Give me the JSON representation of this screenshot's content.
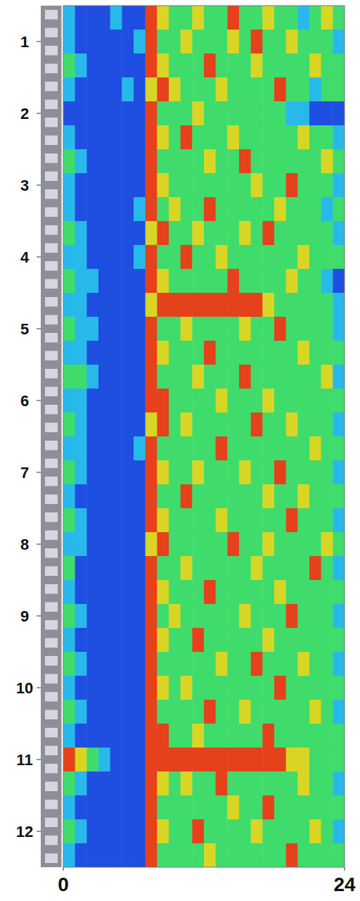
{
  "chart_data": {
    "type": "heatmap",
    "xlim": [
      0,
      24
    ],
    "xticks": [
      0,
      24
    ],
    "ylim": [
      0.5,
      12.5
    ],
    "yticks": [
      1,
      2,
      3,
      4,
      5,
      6,
      7,
      8,
      9,
      10,
      11,
      12
    ],
    "zlim": [
      0,
      4
    ],
    "colors": [
      "#1f4fe0",
      "#27b9ea",
      "#3fdc6c",
      "#d9d524",
      "#e5421c"
    ],
    "cells": [
      [
        1,
        0,
        0,
        0,
        1,
        0,
        0,
        4,
        3,
        2,
        2,
        3,
        2,
        2,
        4,
        2,
        2,
        3,
        2,
        2,
        1,
        2,
        3,
        2
      ],
      [
        1,
        0,
        0,
        0,
        0,
        0,
        1,
        4,
        2,
        2,
        3,
        2,
        2,
        2,
        3,
        2,
        4,
        2,
        2,
        3,
        2,
        2,
        2,
        1
      ],
      [
        2,
        1,
        0,
        0,
        0,
        0,
        0,
        4,
        3,
        2,
        2,
        2,
        4,
        2,
        2,
        2,
        3,
        2,
        2,
        2,
        2,
        3,
        2,
        2
      ],
      [
        1,
        0,
        0,
        0,
        0,
        1,
        0,
        3,
        4,
        3,
        2,
        2,
        2,
        3,
        2,
        2,
        2,
        2,
        4,
        2,
        2,
        1,
        2,
        2
      ],
      [
        0,
        0,
        0,
        0,
        0,
        0,
        0,
        4,
        2,
        2,
        2,
        3,
        2,
        2,
        2,
        2,
        2,
        2,
        2,
        1,
        1,
        0,
        0,
        0
      ],
      [
        1,
        0,
        0,
        0,
        0,
        0,
        0,
        4,
        3,
        2,
        4,
        2,
        2,
        2,
        3,
        2,
        2,
        2,
        2,
        2,
        3,
        2,
        2,
        1
      ],
      [
        2,
        1,
        0,
        0,
        0,
        0,
        0,
        4,
        2,
        2,
        2,
        2,
        3,
        2,
        2,
        4,
        2,
        2,
        2,
        2,
        2,
        2,
        3,
        2
      ],
      [
        1,
        0,
        0,
        0,
        0,
        0,
        0,
        4,
        3,
        2,
        2,
        2,
        2,
        2,
        2,
        2,
        3,
        2,
        2,
        4,
        2,
        2,
        2,
        1
      ],
      [
        1,
        0,
        0,
        0,
        0,
        0,
        1,
        4,
        2,
        3,
        2,
        2,
        4,
        2,
        2,
        2,
        2,
        2,
        3,
        2,
        2,
        2,
        1,
        2
      ],
      [
        2,
        1,
        0,
        0,
        0,
        0,
        0,
        3,
        4,
        2,
        2,
        3,
        2,
        2,
        2,
        3,
        2,
        4,
        2,
        2,
        2,
        2,
        2,
        1
      ],
      [
        1,
        1,
        0,
        0,
        0,
        0,
        1,
        4,
        2,
        2,
        4,
        2,
        2,
        3,
        2,
        2,
        2,
        2,
        2,
        2,
        3,
        2,
        2,
        2
      ],
      [
        2,
        1,
        1,
        0,
        0,
        0,
        0,
        4,
        3,
        2,
        2,
        2,
        2,
        2,
        4,
        2,
        2,
        2,
        2,
        3,
        2,
        2,
        1,
        0
      ],
      [
        1,
        1,
        0,
        0,
        0,
        0,
        0,
        3,
        4,
        4,
        4,
        4,
        4,
        4,
        4,
        4,
        4,
        3,
        2,
        2,
        2,
        2,
        2,
        1
      ],
      [
        2,
        1,
        1,
        0,
        0,
        0,
        0,
        4,
        2,
        2,
        3,
        2,
        2,
        2,
        2,
        3,
        2,
        2,
        4,
        2,
        2,
        2,
        2,
        1
      ],
      [
        1,
        1,
        0,
        0,
        0,
        0,
        0,
        4,
        3,
        2,
        2,
        2,
        4,
        2,
        2,
        2,
        2,
        2,
        2,
        2,
        3,
        2,
        2,
        2
      ],
      [
        2,
        2,
        1,
        0,
        0,
        0,
        0,
        4,
        2,
        2,
        2,
        3,
        2,
        2,
        2,
        4,
        2,
        2,
        2,
        2,
        2,
        2,
        3,
        1
      ],
      [
        1,
        1,
        0,
        0,
        0,
        0,
        0,
        4,
        4,
        2,
        2,
        2,
        2,
        3,
        2,
        2,
        2,
        3,
        2,
        2,
        2,
        2,
        2,
        2
      ],
      [
        2,
        1,
        0,
        0,
        0,
        0,
        0,
        3,
        4,
        2,
        3,
        2,
        2,
        2,
        2,
        2,
        4,
        2,
        2,
        3,
        2,
        2,
        2,
        1
      ],
      [
        1,
        1,
        0,
        0,
        0,
        0,
        1,
        4,
        2,
        2,
        2,
        2,
        2,
        4,
        2,
        2,
        2,
        2,
        2,
        2,
        2,
        3,
        2,
        2
      ],
      [
        2,
        1,
        0,
        0,
        0,
        0,
        0,
        4,
        3,
        2,
        2,
        3,
        2,
        2,
        2,
        3,
        2,
        2,
        4,
        2,
        2,
        2,
        2,
        1
      ],
      [
        1,
        0,
        0,
        0,
        0,
        0,
        0,
        4,
        2,
        2,
        4,
        2,
        2,
        2,
        2,
        2,
        2,
        3,
        2,
        2,
        3,
        2,
        2,
        2
      ],
      [
        2,
        1,
        0,
        0,
        0,
        0,
        0,
        4,
        3,
        2,
        2,
        2,
        2,
        3,
        2,
        2,
        2,
        2,
        2,
        4,
        2,
        2,
        2,
        1
      ],
      [
        1,
        1,
        0,
        0,
        0,
        0,
        0,
        3,
        4,
        2,
        2,
        2,
        2,
        2,
        4,
        2,
        2,
        3,
        2,
        2,
        2,
        2,
        3,
        2
      ],
      [
        2,
        0,
        0,
        0,
        0,
        0,
        0,
        4,
        2,
        2,
        3,
        2,
        2,
        2,
        2,
        2,
        3,
        2,
        2,
        2,
        2,
        4,
        2,
        1
      ],
      [
        1,
        0,
        0,
        0,
        0,
        0,
        0,
        4,
        3,
        2,
        2,
        2,
        4,
        2,
        2,
        2,
        2,
        2,
        3,
        2,
        2,
        2,
        2,
        2
      ],
      [
        2,
        1,
        0,
        0,
        0,
        0,
        0,
        4,
        2,
        3,
        2,
        2,
        2,
        2,
        2,
        3,
        2,
        2,
        2,
        4,
        2,
        2,
        2,
        1
      ],
      [
        1,
        0,
        0,
        0,
        0,
        0,
        0,
        4,
        3,
        2,
        2,
        4,
        2,
        2,
        2,
        2,
        2,
        3,
        2,
        2,
        2,
        2,
        2,
        2
      ],
      [
        2,
        1,
        0,
        0,
        0,
        0,
        0,
        4,
        2,
        2,
        2,
        2,
        2,
        3,
        2,
        2,
        4,
        2,
        2,
        2,
        3,
        2,
        2,
        1
      ],
      [
        1,
        0,
        0,
        0,
        0,
        0,
        0,
        4,
        3,
        2,
        3,
        2,
        2,
        2,
        2,
        2,
        2,
        2,
        4,
        2,
        2,
        2,
        2,
        2
      ],
      [
        2,
        1,
        0,
        0,
        0,
        0,
        0,
        4,
        2,
        2,
        2,
        2,
        4,
        2,
        2,
        3,
        2,
        2,
        2,
        2,
        2,
        3,
        2,
        1
      ],
      [
        1,
        0,
        0,
        0,
        0,
        0,
        0,
        4,
        4,
        2,
        2,
        3,
        2,
        2,
        2,
        2,
        2,
        4,
        2,
        2,
        2,
        2,
        2,
        2
      ],
      [
        4,
        3,
        2,
        1,
        0,
        0,
        0,
        4,
        4,
        4,
        4,
        4,
        4,
        4,
        4,
        4,
        4,
        4,
        4,
        3,
        3,
        2,
        2,
        2
      ],
      [
        2,
        1,
        0,
        0,
        0,
        0,
        0,
        4,
        3,
        2,
        3,
        2,
        2,
        4,
        2,
        2,
        2,
        2,
        2,
        2,
        3,
        2,
        2,
        1
      ],
      [
        1,
        0,
        0,
        0,
        0,
        0,
        0,
        4,
        2,
        2,
        2,
        2,
        2,
        2,
        3,
        2,
        2,
        4,
        2,
        2,
        2,
        2,
        2,
        2
      ],
      [
        2,
        1,
        0,
        0,
        0,
        0,
        0,
        4,
        3,
        2,
        2,
        4,
        2,
        2,
        2,
        2,
        3,
        2,
        2,
        2,
        2,
        3,
        2,
        1
      ],
      [
        1,
        0,
        0,
        0,
        0,
        0,
        0,
        4,
        2,
        2,
        2,
        2,
        3,
        2,
        2,
        2,
        2,
        2,
        2,
        4,
        2,
        2,
        2,
        2
      ]
    ]
  }
}
